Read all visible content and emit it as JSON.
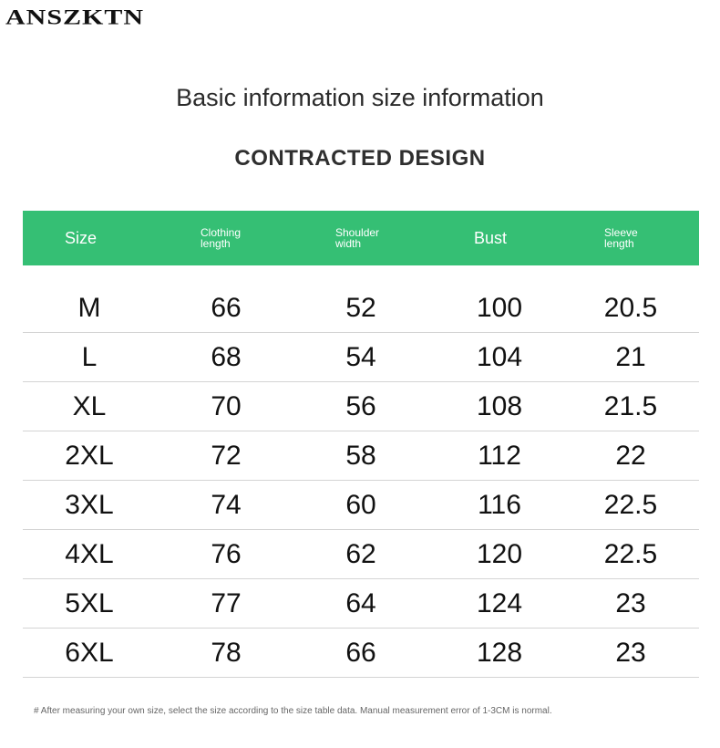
{
  "brand": {
    "logo_text": "ANSZKTN"
  },
  "heading": {
    "title": "Basic information size information",
    "subtitle": "CONTRACTED DESIGN"
  },
  "colors": {
    "header_bg": "#35bf74",
    "header_text": "#ffffff"
  },
  "table": {
    "headers": [
      {
        "label": "Size"
      },
      {
        "label": "Clothing\nlength"
      },
      {
        "label": "Shoulder\nwidth"
      },
      {
        "label": "Bust"
      },
      {
        "label": "Sleeve\nlength"
      }
    ],
    "rows": [
      [
        "M",
        "66",
        "52",
        "100",
        "20.5"
      ],
      [
        "L",
        "68",
        "54",
        "104",
        "21"
      ],
      [
        "XL",
        "70",
        "56",
        "108",
        "21.5"
      ],
      [
        "2XL",
        "72",
        "58",
        "112",
        "22"
      ],
      [
        "3XL",
        "74",
        "60",
        "116",
        "22.5"
      ],
      [
        "4XL",
        "76",
        "62",
        "120",
        "22.5"
      ],
      [
        "5XL",
        "77",
        "64",
        "124",
        "23"
      ],
      [
        "6XL",
        "78",
        "66",
        "128",
        "23"
      ]
    ]
  },
  "footer": {
    "note": "# After measuring your own size, select the size according to the size table data. Manual measurement error of 1-3CM is normal."
  }
}
